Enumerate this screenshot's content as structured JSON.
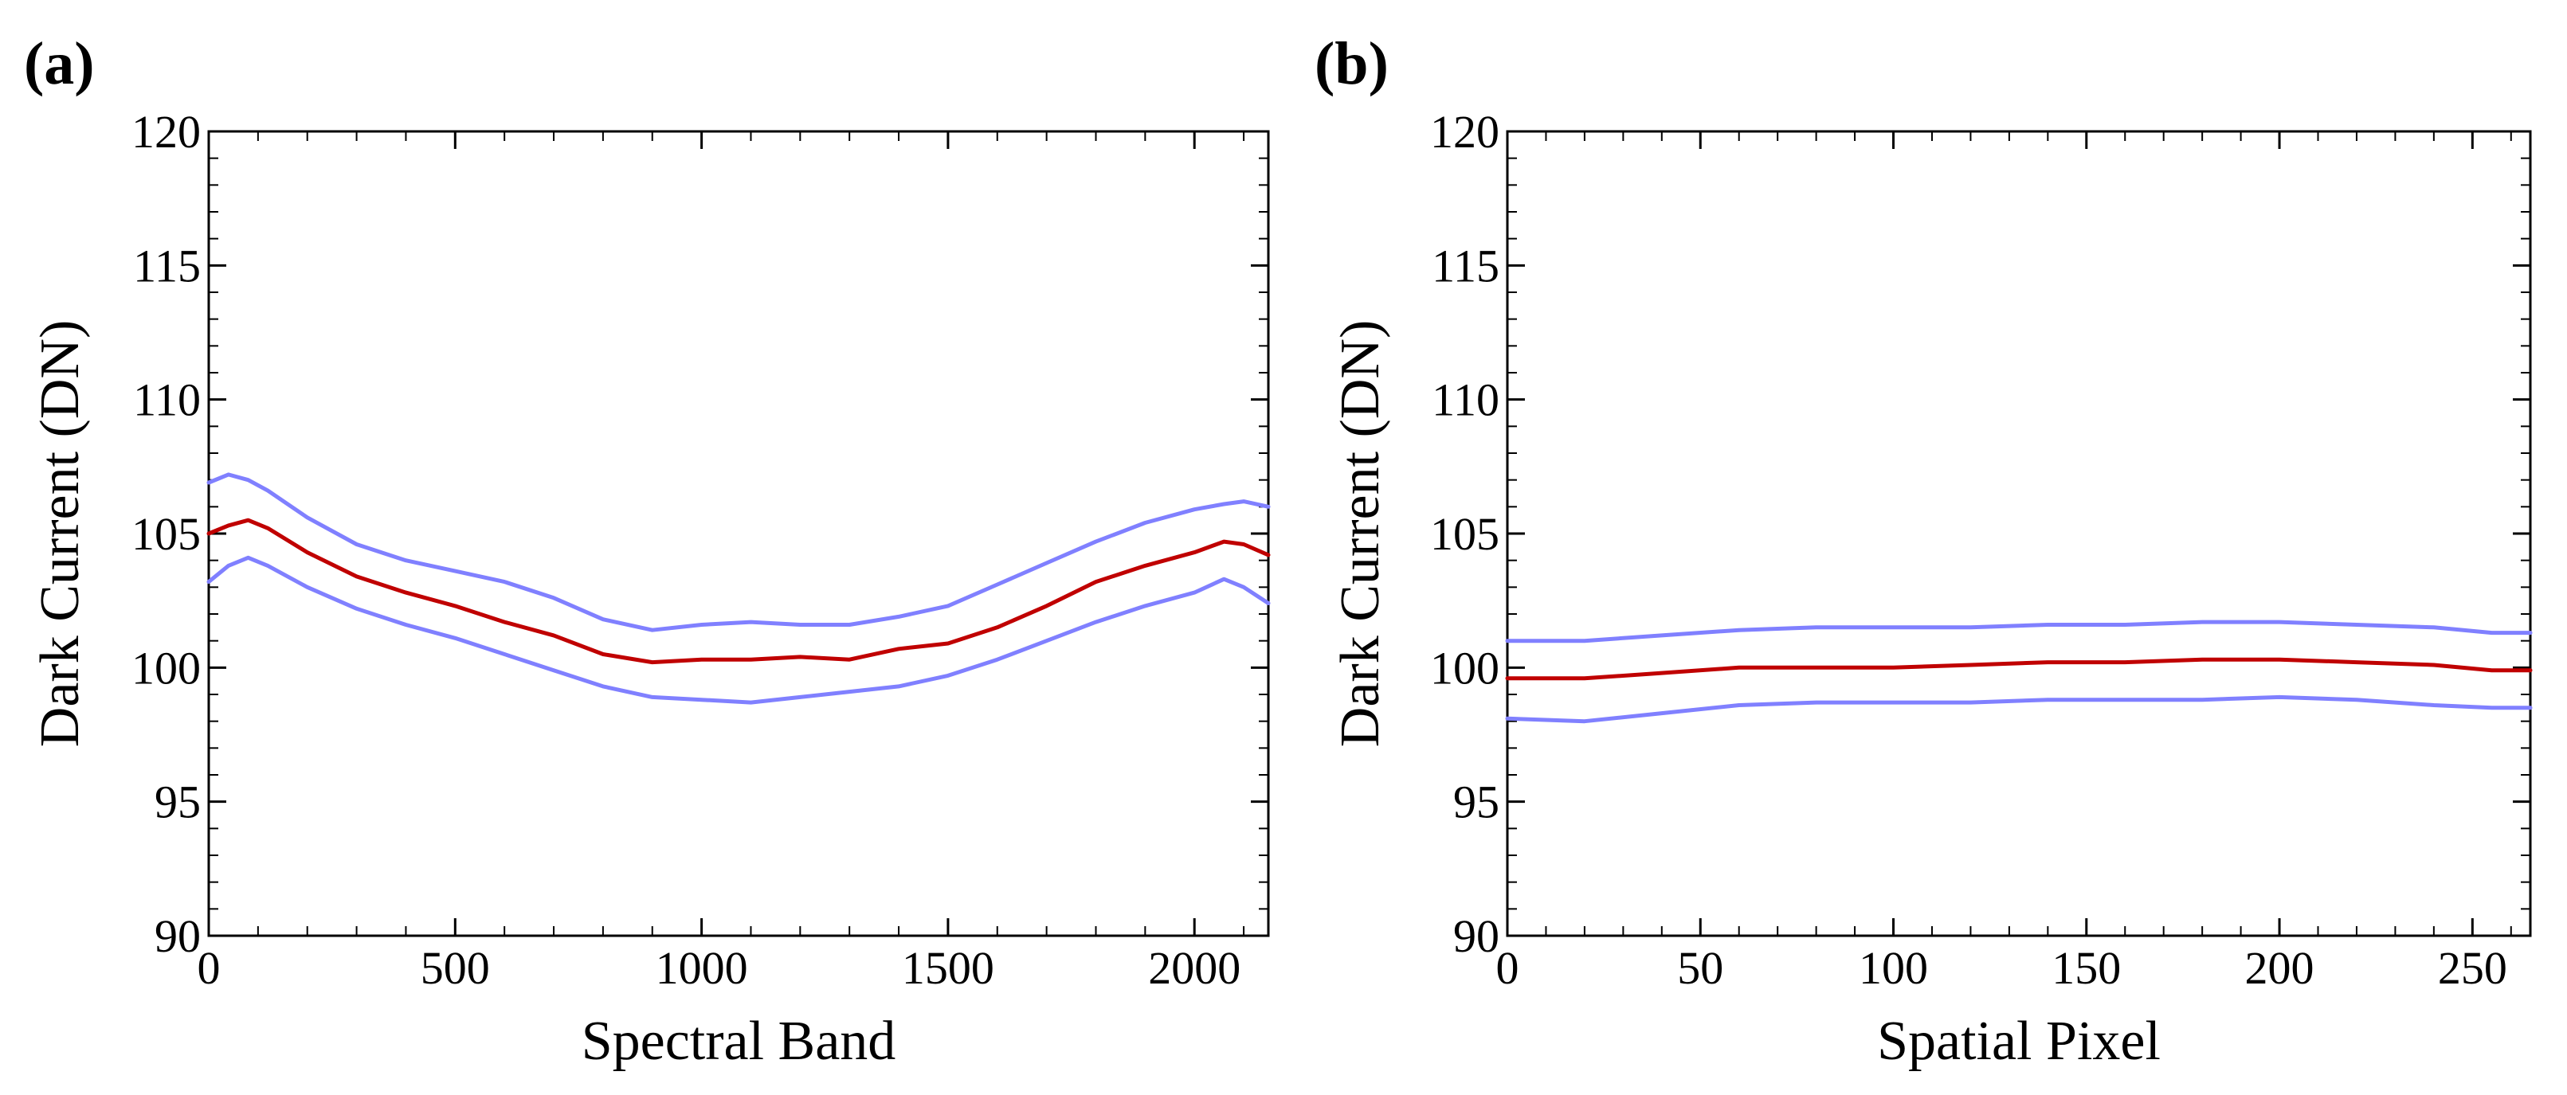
{
  "chart_data": [
    {
      "type": "line",
      "panel_label": "(a)",
      "xlabel": "Spectral Band",
      "ylabel": "Dark Current (DN)",
      "xlim": [
        0,
        2150
      ],
      "ylim": [
        90,
        120
      ],
      "xticks": [
        0,
        500,
        1000,
        1500,
        2000
      ],
      "yticks": [
        90,
        95,
        100,
        105,
        110,
        115,
        120
      ],
      "colors": {
        "mean": "#c00000",
        "bound": "#8080ff"
      },
      "series": [
        {
          "name": "upper",
          "role": "bound",
          "x": [
            0,
            40,
            80,
            120,
            200,
            300,
            400,
            500,
            600,
            700,
            800,
            900,
            1000,
            1100,
            1200,
            1300,
            1400,
            1500,
            1600,
            1700,
            1800,
            1900,
            2000,
            2060,
            2100,
            2150
          ],
          "y": [
            106.9,
            107.2,
            107.0,
            106.6,
            105.6,
            104.6,
            104.0,
            103.6,
            103.2,
            102.6,
            101.8,
            101.4,
            101.6,
            101.7,
            101.6,
            101.6,
            101.9,
            102.3,
            103.1,
            103.9,
            104.7,
            105.4,
            105.9,
            106.1,
            106.2,
            106.0
          ]
        },
        {
          "name": "mean",
          "role": "mean",
          "x": [
            0,
            40,
            80,
            120,
            200,
            300,
            400,
            500,
            600,
            700,
            800,
            900,
            1000,
            1100,
            1200,
            1300,
            1400,
            1500,
            1600,
            1700,
            1800,
            1900,
            2000,
            2060,
            2100,
            2150
          ],
          "y": [
            105.0,
            105.3,
            105.5,
            105.2,
            104.3,
            103.4,
            102.8,
            102.3,
            101.7,
            101.2,
            100.5,
            100.2,
            100.3,
            100.3,
            100.4,
            100.3,
            100.7,
            100.9,
            101.5,
            102.3,
            103.2,
            103.8,
            104.3,
            104.7,
            104.6,
            104.2
          ]
        },
        {
          "name": "lower",
          "role": "bound",
          "x": [
            0,
            40,
            80,
            120,
            200,
            300,
            400,
            500,
            600,
            700,
            800,
            900,
            1000,
            1100,
            1200,
            1300,
            1400,
            1500,
            1600,
            1700,
            1800,
            1900,
            2000,
            2060,
            2100,
            2150
          ],
          "y": [
            103.2,
            103.8,
            104.1,
            103.8,
            103.0,
            102.2,
            101.6,
            101.1,
            100.5,
            99.9,
            99.3,
            98.9,
            98.8,
            98.7,
            98.9,
            99.1,
            99.3,
            99.7,
            100.3,
            101.0,
            101.7,
            102.3,
            102.8,
            103.3,
            103.0,
            102.4
          ]
        }
      ]
    },
    {
      "type": "line",
      "panel_label": "(b)",
      "xlabel": "Spatial Pixel",
      "ylabel": "Dark Current (DN)",
      "xlim": [
        0,
        265
      ],
      "ylim": [
        90,
        120
      ],
      "xticks": [
        0,
        50,
        100,
        150,
        200,
        250
      ],
      "yticks": [
        90,
        95,
        100,
        105,
        110,
        115,
        120
      ],
      "colors": {
        "mean": "#c00000",
        "bound": "#8080ff"
      },
      "series": [
        {
          "name": "upper",
          "role": "bound",
          "x": [
            0,
            20,
            40,
            60,
            80,
            100,
            120,
            140,
            160,
            180,
            200,
            220,
            240,
            255,
            265
          ],
          "y": [
            101.0,
            101.0,
            101.2,
            101.4,
            101.5,
            101.5,
            101.5,
            101.6,
            101.6,
            101.7,
            101.7,
            101.6,
            101.5,
            101.3,
            101.3
          ]
        },
        {
          "name": "mean",
          "role": "mean",
          "x": [
            0,
            20,
            40,
            60,
            80,
            100,
            120,
            140,
            160,
            180,
            200,
            220,
            240,
            255,
            265
          ],
          "y": [
            99.6,
            99.6,
            99.8,
            100.0,
            100.0,
            100.0,
            100.1,
            100.2,
            100.2,
            100.3,
            100.3,
            100.2,
            100.1,
            99.9,
            99.9
          ]
        },
        {
          "name": "lower",
          "role": "bound",
          "x": [
            0,
            20,
            40,
            60,
            80,
            100,
            120,
            140,
            160,
            180,
            200,
            220,
            240,
            255,
            265
          ],
          "y": [
            98.1,
            98.0,
            98.3,
            98.6,
            98.7,
            98.7,
            98.7,
            98.8,
            98.8,
            98.8,
            98.9,
            98.8,
            98.6,
            98.5,
            98.5
          ]
        }
      ]
    }
  ]
}
